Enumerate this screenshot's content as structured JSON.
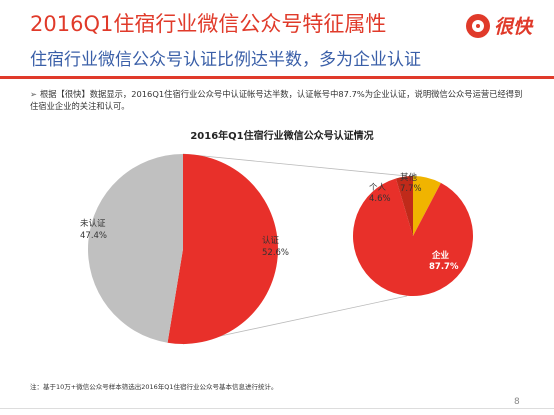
{
  "header": {
    "title": "2016Q1住宿行业微信公众号特征属性",
    "subtitle": "住宿行业微信公众号认证比例达半数，多为企业认证",
    "logo_text": "很快",
    "accent_color": "#e03a2a",
    "subtitle_color": "#3a5fa8"
  },
  "bullet": {
    "text": "根据【很快】数据显示，2016Q1住宿行业公众号中认证帐号达半数，认证帐号中87.7%为企业认证，说明微信公众号运营已经得到住宿业企业的关注和认可。"
  },
  "chart_data": [
    {
      "type": "pie",
      "title": "2016年Q1住宿行业微信公众号认证情况",
      "slices": [
        {
          "label": "认证",
          "value": 52.6,
          "display": "52.6%",
          "color": "#e8302a"
        },
        {
          "label": "未认证",
          "value": 47.4,
          "display": "47.4%",
          "color": "#c0c0c0"
        }
      ]
    },
    {
      "type": "pie",
      "title": "",
      "slices": [
        {
          "label": "企业",
          "value": 87.7,
          "display": "87.7%",
          "color": "#e8302a"
        },
        {
          "label": "个人",
          "value": 4.6,
          "display": "4.6%",
          "color": "#c02a1a"
        },
        {
          "label": "其他",
          "value": 7.7,
          "display": "7.7%",
          "color": "#f0b400"
        }
      ]
    }
  ],
  "footnote": "注：基于10万+微信公众号样本筛选出2016年Q1住宿行业公众号基本信息进行统计。",
  "page_number": "8"
}
